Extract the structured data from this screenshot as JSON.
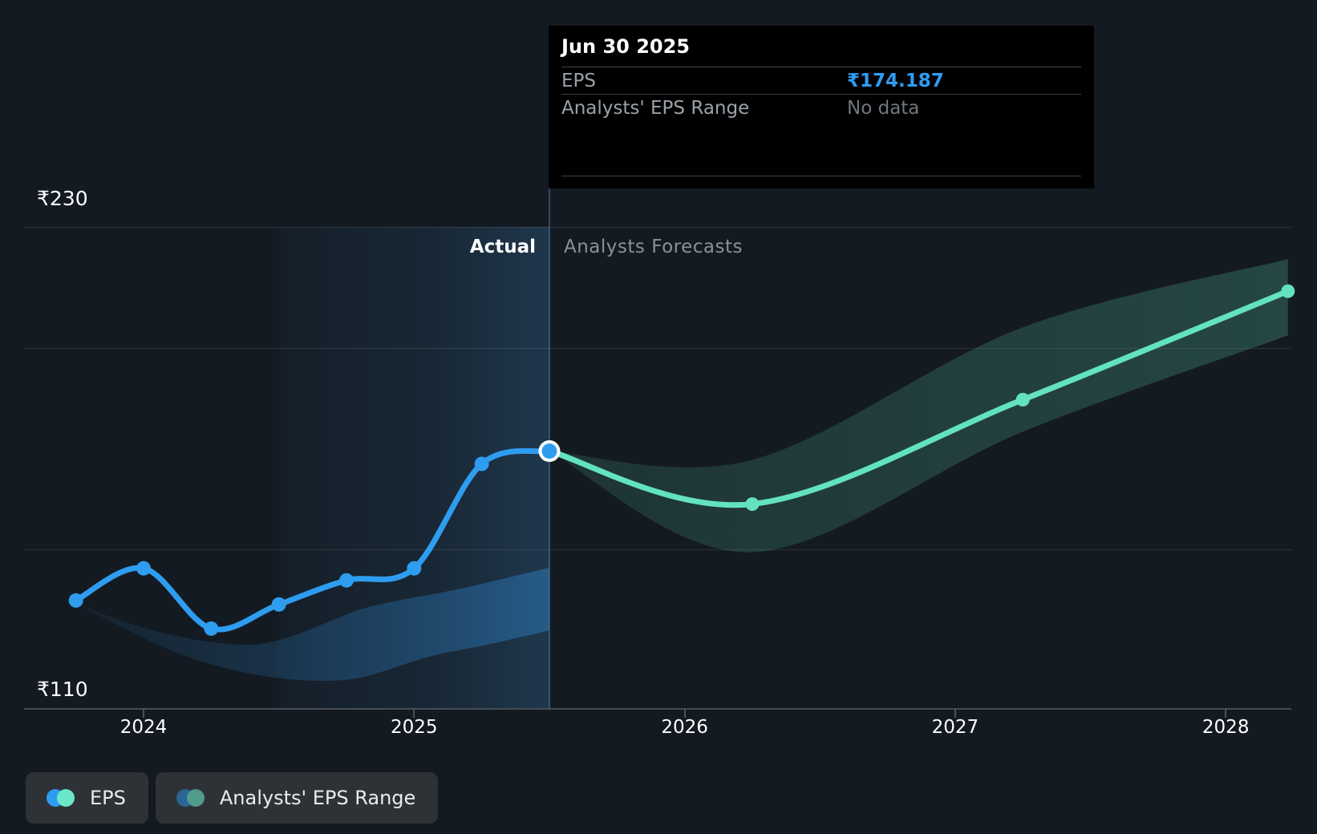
{
  "chart": {
    "y_axis": {
      "top_label": "₹230",
      "bottom_label": "₹110"
    },
    "x_axis": {
      "ticks": [
        {
          "label": "2024",
          "year": 2024
        },
        {
          "label": "2025",
          "year": 2025
        },
        {
          "label": "2026",
          "year": 2026
        },
        {
          "label": "2027",
          "year": 2027
        },
        {
          "label": "2028",
          "year": 2028
        }
      ]
    },
    "regions": {
      "actual_label": "Actual",
      "forecast_label": "Analysts Forecasts"
    },
    "tooltip": {
      "date": "Jun 30 2025",
      "eps_label": "EPS",
      "eps_value": "₹174.187",
      "range_label": "Analysts' EPS Range",
      "range_value": "No data"
    },
    "legend": {
      "eps_label": "EPS",
      "range_label": "Analysts' EPS Range"
    },
    "colors": {
      "actual_line": "#2e9df0",
      "forecast_line": "#63e2c2",
      "range_band": "#63e2c2",
      "legend_range_blue": "#2c6694",
      "legend_range_teal": "#4f9b8e",
      "tooltip_value_blue": "#2f9df3",
      "background": "#141a21"
    }
  },
  "chart_data": {
    "type": "line",
    "title": "EPS actual vs analysts forecast (₹)",
    "currency": "INR",
    "ylim": [
      110,
      240
    ],
    "gridline_values": [
      230,
      200,
      150,
      110
    ],
    "highlight_x_range": [
      2024.5,
      2025.5
    ],
    "divider_x": 2025.5,
    "series": [
      {
        "name": "EPS (actual)",
        "type": "line",
        "x": [
          2023.75,
          2024.0,
          2024.25,
          2024.5,
          2024.75,
          2025.0,
          2025.25,
          2025.5
        ],
        "values": [
          137,
          145,
          130,
          136,
          142,
          145,
          171,
          174.187
        ]
      },
      {
        "name": "EPS (analysts forecast)",
        "type": "line",
        "x": [
          2025.5,
          2026.25,
          2027.25,
          2028.23
        ],
        "values": [
          174.187,
          161,
          187,
          214
        ]
      },
      {
        "name": "Analysts' EPS Range",
        "type": "band",
        "x": [
          2025.5,
          2026.25,
          2027.25,
          2028.23
        ],
        "low": [
          174.187,
          149,
          179,
          203
        ],
        "high": [
          174.187,
          172,
          205,
          222
        ]
      }
    ],
    "selected_point": {
      "x": 2025.5,
      "date": "Jun 30 2025",
      "value": 174.187
    }
  }
}
